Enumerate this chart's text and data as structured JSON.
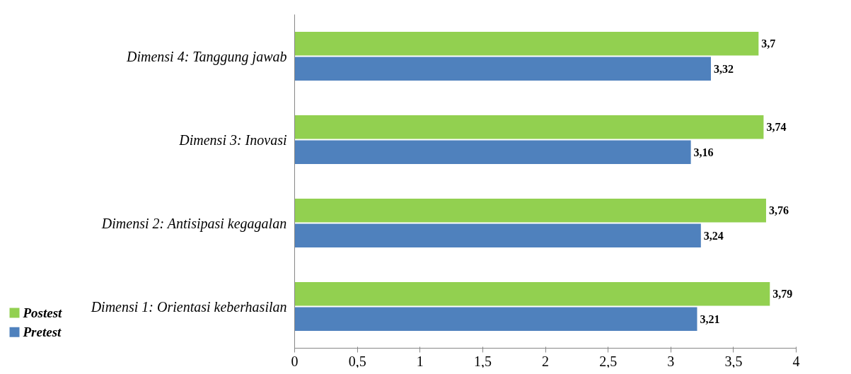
{
  "chart_data": {
    "type": "bar",
    "orientation": "horizontal",
    "categories": [
      "Dimensi 4: Tanggung jawab",
      "Dimensi 3: Inovasi",
      "Dimensi 2: Antisipasi kegagalan",
      "Dimensi 1: Orientasi keberhasilan"
    ],
    "series": [
      {
        "name": "Postest",
        "color": "#92d050",
        "values": [
          3.7,
          3.74,
          3.76,
          3.79
        ],
        "value_labels": [
          "3,7",
          "3,74",
          "3,76",
          "3,79"
        ]
      },
      {
        "name": "Pretest",
        "color": "#4f81bd",
        "values": [
          3.32,
          3.16,
          3.24,
          3.21
        ],
        "value_labels": [
          "3,32",
          "3,16",
          "3,24",
          "3,21"
        ]
      }
    ],
    "xlim": [
      0,
      4
    ],
    "xticks": [
      0,
      {
        "value": 0.5,
        "label": "0,5"
      },
      1,
      {
        "value": 1.5,
        "label": "1,5"
      },
      2,
      {
        "value": 2.5,
        "label": "2,5"
      },
      3,
      {
        "value": 3.5,
        "label": "3,5"
      },
      4
    ],
    "grid": false,
    "legend": "bottom left"
  }
}
